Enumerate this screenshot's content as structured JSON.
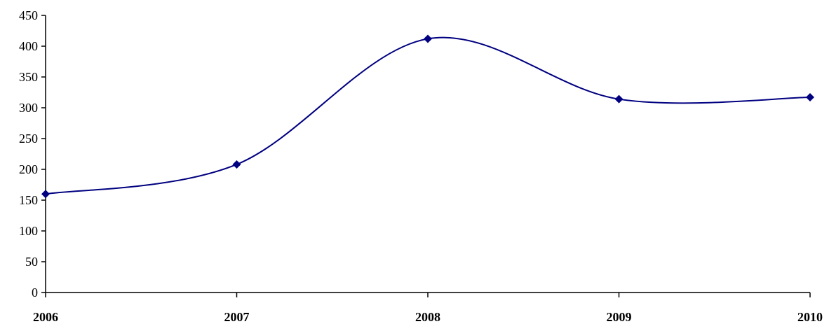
{
  "chart_data": {
    "type": "line",
    "categories": [
      "2006",
      "2007",
      "2008",
      "2009",
      "2010"
    ],
    "series": [
      {
        "values": [
          160,
          208,
          412,
          314,
          317
        ]
      }
    ],
    "ylim": [
      0,
      450
    ],
    "yticks": [
      "0",
      "50",
      "100",
      "150",
      "200",
      "250",
      "300",
      "350",
      "400",
      "450"
    ],
    "smooth": true,
    "grid": false,
    "legend": "none",
    "colors": {
      "line": "#000080",
      "marker": "#000080",
      "axis": "#000000"
    },
    "marker": "diamond"
  }
}
